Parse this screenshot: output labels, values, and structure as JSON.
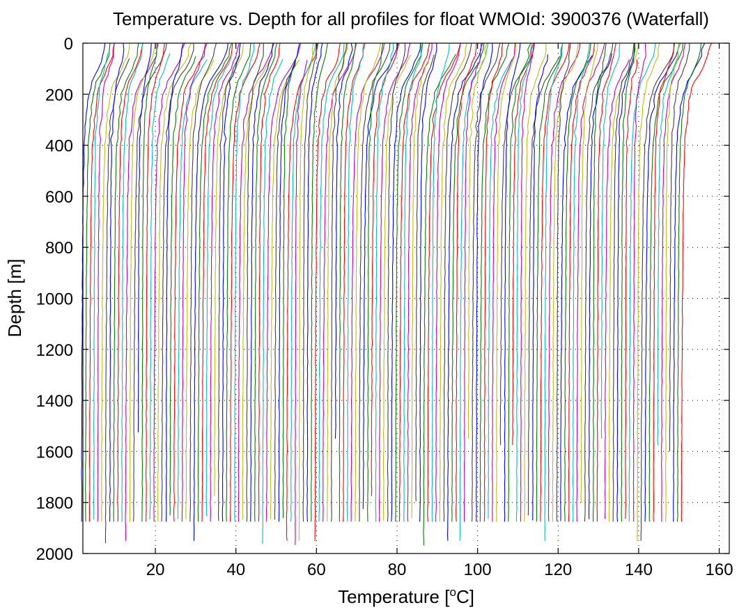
{
  "chart_data": {
    "type": "line",
    "title": "Temperature vs. Depth for all profiles for float WMOId: 3900376 (Waterfall)",
    "xlabel": "Temperature [°C]",
    "xlabel_main": "Temperature [",
    "xlabel_sup": "o",
    "xlabel_end": "C]",
    "ylabel": "Depth [m]",
    "xlim": [
      2,
      162.5
    ],
    "ylim": [
      0,
      2000
    ],
    "y_reversed": true,
    "grid": true,
    "x_ticks": [
      20,
      40,
      60,
      80,
      100,
      120,
      140,
      160
    ],
    "y_ticks": [
      0,
      200,
      400,
      600,
      800,
      1000,
      1200,
      1400,
      1600,
      1800,
      2000
    ],
    "series_colors": [
      "#0000ff",
      "#008000",
      "#ff0000",
      "#00bfbf",
      "#bf00bf",
      "#bfbf00",
      "#404040"
    ],
    "profile_count": 150,
    "waterfall_offset_per_profile": 1.0,
    "profile_shape": {
      "depth": [
        0,
        50,
        100,
        150,
        200,
        300,
        400,
        600,
        800,
        1000,
        1200,
        1400,
        1600,
        1800,
        1875
      ],
      "temp_rel": [
        5.0,
        4.6,
        3.5,
        2.2,
        1.5,
        0.8,
        0.45,
        0.22,
        0.12,
        0.05,
        0.0,
        -0.05,
        -0.08,
        -0.1,
        -0.12
      ]
    },
    "profiles_start_x": 1.8
  }
}
